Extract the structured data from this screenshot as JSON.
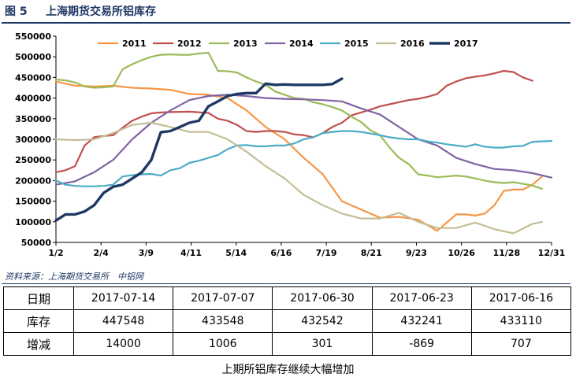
{
  "header": {
    "figure_no": "图 5",
    "title": "上海期货交易所铝库存"
  },
  "chart_data": {
    "type": "line",
    "title": "上海期货交易所铝库存",
    "x_ticks": [
      "1/2",
      "2/4",
      "3/9",
      "4/11",
      "5/14",
      "6/16",
      "7/19",
      "8/21",
      "9/23",
      "10/26",
      "11/28",
      "12/31"
    ],
    "y_ticks": [
      "50000",
      "100000",
      "150000",
      "200000",
      "250000",
      "300000",
      "350000",
      "400000",
      "450000",
      "500000",
      "550000"
    ],
    "ylim": [
      50000,
      550000
    ],
    "xlim": [
      0,
      52
    ],
    "grid": false,
    "legend_position": "top",
    "series": [
      {
        "name": "2011",
        "color": "#f79646",
        "width": 2.2,
        "x": [
          0,
          2,
          4,
          6,
          8,
          10,
          12,
          14,
          16,
          18,
          20,
          22,
          24,
          26,
          28,
          30,
          32,
          34,
          36,
          38,
          40,
          42,
          43,
          44,
          45,
          46,
          47,
          48,
          49,
          50,
          51
        ],
        "values": [
          440000,
          430000,
          428000,
          430000,
          425000,
          423000,
          420000,
          410000,
          408000,
          400000,
          370000,
          330000,
          300000,
          255000,
          215000,
          150000,
          130000,
          110000,
          112000,
          105000,
          78000,
          118000,
          118000,
          115000,
          120000,
          140000,
          175000,
          178000,
          178000,
          190000,
          210000
        ]
      },
      {
        "name": "2012",
        "color": "#c0504d",
        "width": 2.2,
        "x": [
          0,
          1,
          2,
          3,
          4,
          5,
          6,
          7,
          8,
          9,
          10,
          11,
          12,
          14,
          16,
          17,
          18,
          19,
          20,
          21,
          22,
          23,
          24,
          25,
          26,
          27,
          28,
          29,
          30,
          31,
          32,
          33,
          34,
          35,
          36,
          37,
          38,
          39,
          40,
          41,
          42,
          43,
          44,
          45,
          46,
          47,
          48,
          49,
          50
        ],
        "values": [
          220000,
          225000,
          235000,
          285000,
          305000,
          308000,
          310000,
          328000,
          345000,
          355000,
          363000,
          365000,
          366000,
          367000,
          364000,
          350000,
          345000,
          335000,
          320000,
          318000,
          320000,
          320000,
          318000,
          312000,
          310000,
          305000,
          315000,
          330000,
          340000,
          358000,
          365000,
          372000,
          380000,
          385000,
          390000,
          395000,
          398000,
          403000,
          410000,
          430000,
          440000,
          448000,
          452000,
          455000,
          460000,
          466000,
          463000,
          450000,
          442000
        ]
      },
      {
        "name": "2013",
        "color": "#9bbb59",
        "width": 2.2,
        "x": [
          0,
          1,
          2,
          3,
          4,
          5,
          6,
          7,
          8,
          9,
          10,
          11,
          12,
          13,
          14,
          15,
          16,
          17,
          18,
          19,
          20,
          21,
          22,
          23,
          24,
          25,
          26,
          27,
          28,
          29,
          30,
          31,
          32,
          33,
          34,
          35,
          36,
          37,
          38,
          39,
          40,
          41,
          42,
          43,
          44,
          45,
          46,
          47,
          48,
          49,
          50,
          51
        ],
        "values": [
          445000,
          443000,
          438000,
          428000,
          425000,
          426000,
          428000,
          470000,
          482000,
          492000,
          500000,
          505000,
          506000,
          505000,
          505000,
          508000,
          510000,
          466000,
          465000,
          462000,
          450000,
          440000,
          432000,
          416000,
          408000,
          400000,
          398000,
          390000,
          385000,
          378000,
          370000,
          355000,
          342000,
          322000,
          310000,
          280000,
          255000,
          240000,
          215000,
          212000,
          208000,
          210000,
          212000,
          210000,
          205000,
          200000,
          196000,
          194000,
          196000,
          192000,
          188000,
          180000
        ]
      },
      {
        "name": "2014",
        "color": "#8064a2",
        "width": 2.2,
        "x": [
          0,
          2,
          4,
          6,
          8,
          10,
          12,
          14,
          16,
          18,
          20,
          22,
          24,
          26,
          28,
          30,
          32,
          34,
          36,
          38,
          40,
          42,
          44,
          46,
          48,
          50,
          52
        ],
        "values": [
          190000,
          198000,
          220000,
          250000,
          300000,
          340000,
          370000,
          395000,
          405000,
          408000,
          405000,
          400000,
          398000,
          397000,
          395000,
          392000,
          375000,
          360000,
          330000,
          300000,
          285000,
          255000,
          240000,
          228000,
          225000,
          218000,
          207000
        ]
      },
      {
        "name": "2015",
        "color": "#4bacc6",
        "width": 2.2,
        "x": [
          0,
          1,
          2,
          3,
          4,
          5,
          6,
          7,
          8,
          9,
          10,
          11,
          12,
          13,
          14,
          15,
          16,
          17,
          18,
          19,
          20,
          21,
          22,
          23,
          24,
          25,
          26,
          27,
          28,
          29,
          30,
          31,
          32,
          33,
          34,
          35,
          36,
          37,
          38,
          39,
          40,
          41,
          42,
          43,
          44,
          45,
          46,
          47,
          48,
          49,
          50,
          51,
          52
        ],
        "values": [
          200000,
          190000,
          187000,
          186000,
          186000,
          187000,
          190000,
          210000,
          213000,
          215000,
          216000,
          212000,
          225000,
          230000,
          243000,
          248000,
          255000,
          262000,
          276000,
          285000,
          286000,
          283000,
          283000,
          285000,
          285000,
          290000,
          300000,
          305000,
          315000,
          318000,
          320000,
          320000,
          318000,
          314000,
          310000,
          305000,
          302000,
          300000,
          300000,
          295000,
          292000,
          288000,
          285000,
          282000,
          288000,
          282000,
          280000,
          280000,
          283000,
          284000,
          294000,
          295000,
          296000
        ]
      },
      {
        "name": "2016",
        "color": "#c4bd97",
        "width": 2.2,
        "x": [
          0,
          2,
          4,
          6,
          8,
          10,
          12,
          14,
          16,
          18,
          20,
          22,
          24,
          26,
          28,
          30,
          32,
          34,
          36,
          38,
          40,
          42,
          44,
          46,
          48,
          50,
          51
        ],
        "values": [
          300000,
          298000,
          300000,
          315000,
          335000,
          340000,
          330000,
          318000,
          318000,
          300000,
          270000,
          235000,
          205000,
          165000,
          140000,
          120000,
          108000,
          108000,
          122000,
          100000,
          85000,
          85000,
          98000,
          82000,
          72000,
          95000,
          100000
        ]
      },
      {
        "name": "2017",
        "color": "#1f3864",
        "width": 3.4,
        "x": [
          0,
          1,
          2,
          3,
          4,
          5,
          6,
          7,
          8,
          9,
          10,
          11,
          12,
          13,
          14,
          15,
          16,
          17,
          18,
          19,
          20,
          21,
          22,
          23,
          24,
          25,
          26,
          27,
          28,
          29,
          30
        ],
        "values": [
          103000,
          118000,
          118000,
          125000,
          140000,
          170000,
          185000,
          190000,
          205000,
          220000,
          250000,
          317000,
          320000,
          330000,
          340000,
          345000,
          380000,
          392000,
          405000,
          410000,
          412000,
          412000,
          435000,
          432000,
          433000,
          432000,
          432000,
          432000,
          432000,
          434000,
          447000
        ]
      }
    ]
  },
  "source": "资料来源：上海期货交易所　中铝网",
  "table": {
    "header_label": "日期",
    "dates": [
      "2017-07-14",
      "2017-07-07",
      "2017-06-30",
      "2017-06-23",
      "2017-06-16"
    ],
    "rows": [
      {
        "label": "库存",
        "values": [
          "447548",
          "433548",
          "432542",
          "432241",
          "433110"
        ]
      },
      {
        "label": "增减",
        "values": [
          "14000",
          "1006",
          "301",
          "-869",
          "707"
        ]
      }
    ]
  },
  "caption": "上期所铝库存继续大幅增加"
}
